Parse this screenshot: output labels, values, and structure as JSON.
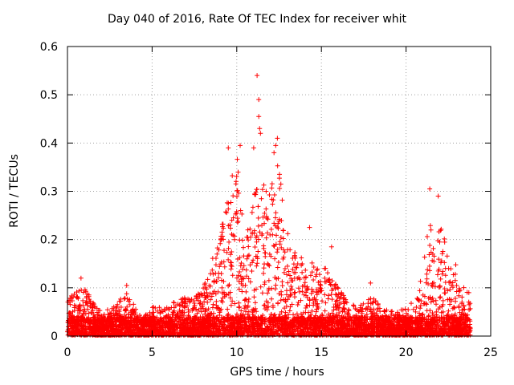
{
  "chart_data": {
    "type": "scatter",
    "title": "Day 040 of 2016, Rate Of TEC Index for receiver whit",
    "xlabel": "GPS time / hours",
    "ylabel": "ROTI / TECUs",
    "xlim": [
      0,
      25
    ],
    "ylim": [
      0,
      0.6
    ],
    "xticks": [
      0,
      5,
      10,
      15,
      20,
      25
    ],
    "xtick_labels": [
      "0",
      "5",
      "10",
      "15",
      "20",
      "25"
    ],
    "yticks": [
      0,
      0.1,
      0.2,
      0.3,
      0.4,
      0.5,
      0.6
    ],
    "ytick_labels": [
      "0",
      "0.1",
      "0.2",
      "0.3",
      "0.4",
      "0.5",
      "0.6"
    ],
    "grid": true,
    "marker": "+",
    "color": "#ff0000",
    "series": [
      {
        "name": "ROTI",
        "envelope": [
          [
            0.0,
            0.08
          ],
          [
            0.5,
            0.09
          ],
          [
            0.9,
            0.11
          ],
          [
            1.5,
            0.07
          ],
          [
            2.0,
            0.05
          ],
          [
            3.0,
            0.07
          ],
          [
            3.4,
            0.1
          ],
          [
            4.0,
            0.06
          ],
          [
            4.5,
            0.04
          ],
          [
            5.0,
            0.06
          ],
          [
            6.0,
            0.06
          ],
          [
            6.5,
            0.08
          ],
          [
            7.5,
            0.08
          ],
          [
            8.0,
            0.1
          ],
          [
            8.7,
            0.18
          ],
          [
            9.2,
            0.25
          ],
          [
            9.5,
            0.3
          ],
          [
            9.8,
            0.36
          ],
          [
            10.1,
            0.38
          ],
          [
            10.4,
            0.2
          ],
          [
            10.8,
            0.24
          ],
          [
            11.2,
            0.33
          ],
          [
            11.5,
            0.32
          ],
          [
            12.0,
            0.3
          ],
          [
            12.4,
            0.38
          ],
          [
            12.7,
            0.3
          ],
          [
            13.0,
            0.22
          ],
          [
            13.5,
            0.18
          ],
          [
            14.0,
            0.17
          ],
          [
            14.5,
            0.15
          ],
          [
            15.0,
            0.13
          ],
          [
            15.5,
            0.16
          ],
          [
            16.0,
            0.1
          ],
          [
            17.0,
            0.06
          ],
          [
            18.0,
            0.08
          ],
          [
            19.0,
            0.05
          ],
          [
            20.0,
            0.06
          ],
          [
            20.7,
            0.08
          ],
          [
            21.2,
            0.2
          ],
          [
            21.5,
            0.26
          ],
          [
            21.8,
            0.18
          ],
          [
            22.0,
            0.24
          ],
          [
            22.4,
            0.2
          ],
          [
            22.8,
            0.16
          ],
          [
            23.2,
            0.13
          ],
          [
            23.5,
            0.1
          ],
          [
            23.8,
            0.09
          ]
        ],
        "outliers": [
          [
            11.2,
            0.54
          ],
          [
            11.3,
            0.49
          ],
          [
            11.3,
            0.455
          ],
          [
            11.35,
            0.43
          ],
          [
            11.4,
            0.42
          ],
          [
            11.0,
            0.39
          ],
          [
            10.2,
            0.395
          ],
          [
            9.5,
            0.39
          ],
          [
            12.4,
            0.41
          ],
          [
            12.3,
            0.395
          ],
          [
            12.2,
            0.38
          ],
          [
            21.4,
            0.305
          ],
          [
            21.9,
            0.29
          ],
          [
            14.3,
            0.225
          ],
          [
            15.6,
            0.185
          ],
          [
            17.9,
            0.11
          ],
          [
            0.8,
            0.12
          ],
          [
            3.5,
            0.105
          ]
        ]
      }
    ]
  }
}
